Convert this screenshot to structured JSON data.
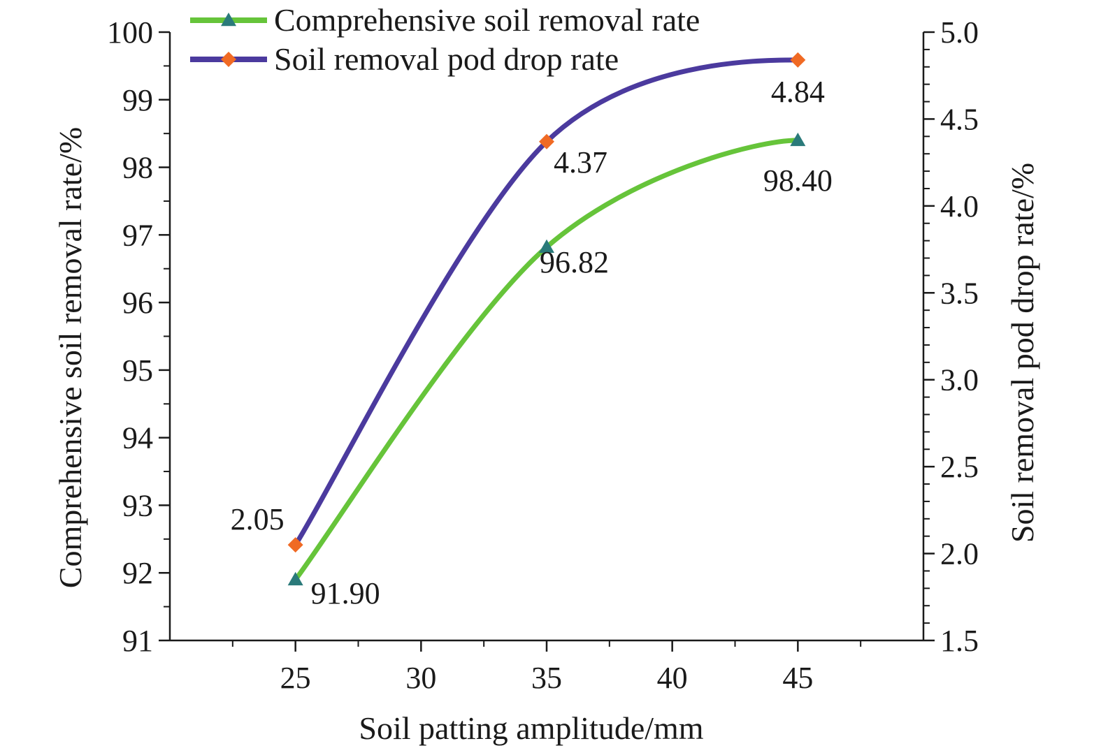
{
  "chart_data": {
    "type": "line",
    "x": [
      25,
      35,
      45
    ],
    "xlabel": "Soil patting amplitude/mm",
    "ylabel_left": "Comprehensive soil removal rate/%",
    "ylabel_right": "Soil removal pod drop rate/%",
    "xlim": [
      20,
      50
    ],
    "ylim_left": [
      91,
      100
    ],
    "ylim_right": [
      1.5,
      5.0
    ],
    "x_ticks": [
      "25",
      "30",
      "35",
      "40",
      "45"
    ],
    "y_left_ticks": [
      "91",
      "92",
      "93",
      "94",
      "95",
      "96",
      "97",
      "98",
      "99",
      "100"
    ],
    "y_right_ticks": [
      "1.5",
      "2.0",
      "2.5",
      "3.0",
      "3.5",
      "4.0",
      "4.5",
      "5.0"
    ],
    "legend_position": "top-left",
    "grid": false,
    "series": [
      {
        "name": "Comprehensive soil removal rate",
        "axis": "left",
        "values": [
          91.9,
          96.82,
          98.4
        ],
        "labels": [
          "91.90",
          "96.82",
          "98.40"
        ],
        "line_color": "#66c43a",
        "marker": "triangle",
        "marker_color": "#2a7a7a"
      },
      {
        "name": "Soil removal pod drop rate",
        "axis": "right",
        "values": [
          2.05,
          4.37,
          4.84
        ],
        "labels": [
          "2.05",
          "4.37",
          "4.84"
        ],
        "line_color": "#4b3a9e",
        "marker": "diamond",
        "marker_color": "#f06a24"
      }
    ]
  }
}
